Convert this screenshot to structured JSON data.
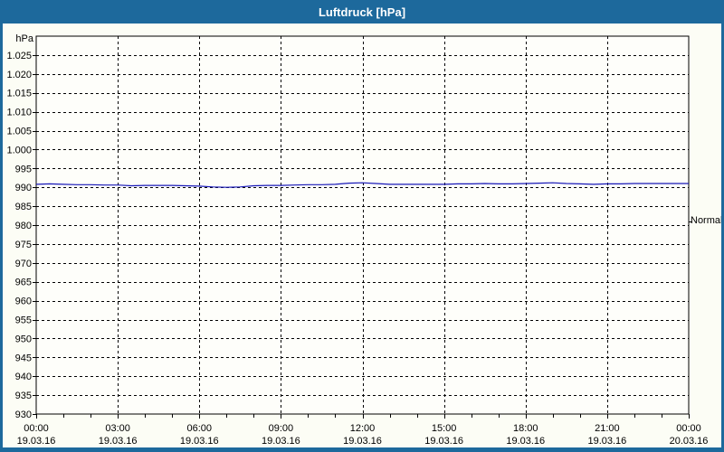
{
  "window": {
    "title": "Luftdruck [hPa]",
    "title_bar_color": "#1d699c",
    "border_color": "#1d699c",
    "background_color": "#fcfdf5"
  },
  "chart_data": {
    "type": "line",
    "title": "Luftdruck [hPa]",
    "ylabel_unit": "hPa",
    "ylim": [
      930,
      1030
    ],
    "y_tick_values": [
      1025,
      1020,
      1015,
      1010,
      1005,
      1000,
      995,
      990,
      985,
      980,
      975,
      970,
      965,
      960,
      955,
      950,
      945,
      940,
      935,
      930
    ],
    "y_tick_labels": [
      "1.025",
      "1.020",
      "1.015",
      "1.010",
      "1.005",
      "1.000",
      "995",
      "990",
      "985",
      "980",
      "975",
      "970",
      "965",
      "960",
      "955",
      "950",
      "945",
      "940",
      "935",
      "930"
    ],
    "xlim_hours": [
      0,
      24
    ],
    "x_minor_tick_step_hours": 1,
    "x_ticks": [
      {
        "hour": 0,
        "time": "00:00",
        "date": "19.03.16"
      },
      {
        "hour": 3,
        "time": "03:00",
        "date": "19.03.16"
      },
      {
        "hour": 6,
        "time": "06:00",
        "date": "19.03.16"
      },
      {
        "hour": 9,
        "time": "09:00",
        "date": "19.03.16"
      },
      {
        "hour": 12,
        "time": "12:00",
        "date": "19.03.16"
      },
      {
        "hour": 15,
        "time": "15:00",
        "date": "19.03.16"
      },
      {
        "hour": 18,
        "time": "18:00",
        "date": "19.03.16"
      },
      {
        "hour": 21,
        "time": "21:00",
        "date": "19.03.16"
      },
      {
        "hour": 24,
        "time": "00:00",
        "date": "20.03.16"
      }
    ],
    "grid": "dashed",
    "grid_color": "#000000",
    "plot_background": "#fefefa",
    "series": [
      {
        "name": "Luftdruck",
        "color": "#1818b8",
        "x_start_hour": 0,
        "x_step_hours": 0.5,
        "values": [
          990.8,
          990.9,
          990.8,
          990.7,
          990.7,
          990.6,
          990.6,
          990.4,
          990.5,
          990.5,
          990.5,
          990.4,
          990.3,
          990.1,
          990.0,
          990.1,
          990.4,
          990.5,
          990.5,
          990.6,
          990.7,
          990.7,
          990.8,
          991.1,
          991.2,
          991.0,
          990.8,
          990.8,
          990.8,
          990.8,
          990.8,
          990.9,
          990.9,
          991.0,
          990.9,
          990.9,
          991.0,
          991.1,
          991.2,
          991.0,
          990.9,
          990.8,
          990.9,
          990.9,
          991.0,
          991.0,
          991.0,
          991.0,
          991.0
        ]
      }
    ],
    "annotations": [
      {
        "label": "Normal",
        "value": 981,
        "side": "right"
      }
    ]
  }
}
